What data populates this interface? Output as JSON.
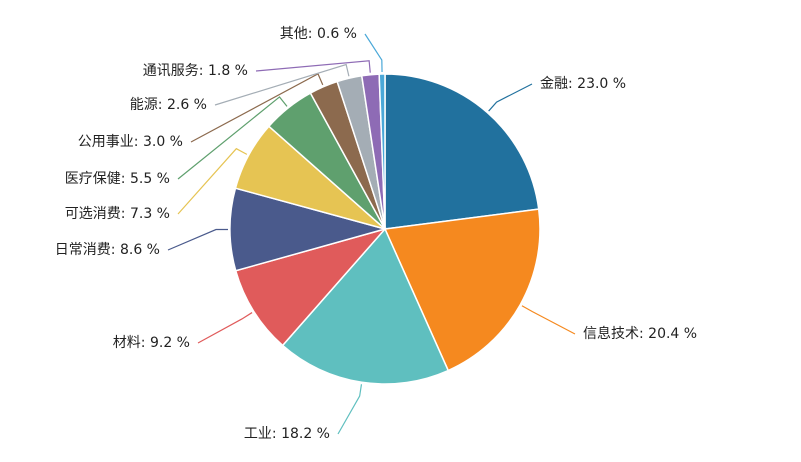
{
  "chart_data": {
    "type": "pie",
    "categories": [
      "金融",
      "信息技术",
      "工业",
      "材料",
      "日常消费",
      "可选消费",
      "医疗保健",
      "公用事业",
      "能源",
      "通讯服务",
      "其他"
    ],
    "values": [
      23,
      20.4,
      18.2,
      9.2,
      8.6,
      7.3,
      5.5,
      3,
      2.6,
      1.8,
      0.6
    ],
    "value_labels": [
      "23.0 %",
      "20.4 %",
      "18.2 %",
      "9.2 %",
      "8.6 %",
      "7.3 %",
      "5.5 %",
      "3.0 %",
      "2.6 %",
      "1.8 %",
      "0.6 %"
    ],
    "label_separator": ": ",
    "colors": [
      "#21719e",
      "#f5891f",
      "#5fbfbf",
      "#e05b5b",
      "#4a5a8c",
      "#e6c453",
      "#5fa06e",
      "#8c6a4e",
      "#a4adb5",
      "#8e6bb5",
      "#4aa8d8"
    ]
  }
}
